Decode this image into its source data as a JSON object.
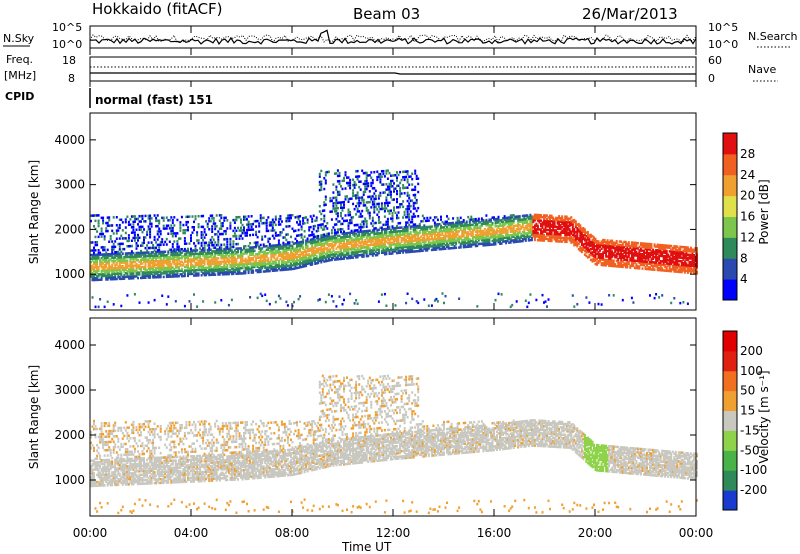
{
  "header": {
    "station": "Hokkaido (fitACF)",
    "beam": "Beam 03",
    "date": "26/Mar/2013"
  },
  "noise_panel": {
    "left_label": "N.Sky",
    "right_label": "N.Search",
    "left_ticks": [
      "10^5",
      "10^0"
    ],
    "right_ticks": [
      "10^5",
      "10^0"
    ]
  },
  "freq_panel": {
    "left_label_1": "Freq.",
    "left_label_2": "[MHz]",
    "right_label": "Nave",
    "left_ticks": [
      "18",
      "8"
    ],
    "right_ticks": [
      "60",
      "0"
    ]
  },
  "cpid_panel": {
    "label": "CPID",
    "mode": "normal (fast) 151"
  },
  "chart_data": [
    {
      "type": "heatmap",
      "title": "",
      "ylabel": "Slant Range [km]",
      "ylim": [
        200,
        4600
      ],
      "yticks": [
        "1000",
        "2000",
        "3000",
        "4000"
      ],
      "colorbar": {
        "label": "Power [dB]",
        "ticks": [
          "4",
          "8",
          "12",
          "16",
          "20",
          "24",
          "28"
        ],
        "colors": [
          "#0000ff",
          "#2a4ab0",
          "#2f8a5a",
          "#7cc64b",
          "#dfe04a",
          "#f0a030",
          "#f06020",
          "#e01010"
        ]
      },
      "bands": [
        {
          "name": "main_echo",
          "x": [
            0,
            2,
            4,
            6,
            8,
            9.5,
            12,
            14,
            16,
            17.5,
            19,
            20,
            22,
            24
          ],
          "y": [
            1150,
            1200,
            1250,
            1300,
            1400,
            1600,
            1750,
            1850,
            1950,
            2050,
            2000,
            1500,
            1400,
            1300
          ]
        }
      ]
    },
    {
      "type": "heatmap",
      "title": "",
      "ylabel": "Slant Range [km]",
      "ylim": [
        200,
        4600
      ],
      "yticks": [
        "1000",
        "2000",
        "3000",
        "4000"
      ],
      "colorbar": {
        "label": "Velocity [m s⁻¹]",
        "ticks": [
          "200",
          "100",
          "50",
          "15",
          "-15",
          "-50",
          "-100",
          "-200"
        ],
        "colors": [
          "#1a3bd0",
          "#2f8a5a",
          "#49b248",
          "#8fd34a",
          "#c8c8c0",
          "#f0a030",
          "#f07020",
          "#e02010",
          "#e00000"
        ]
      }
    }
  ],
  "x_axis": {
    "label": "Time UT",
    "ticks": [
      "00:00",
      "04:00",
      "08:00",
      "12:00",
      "16:00",
      "20:00",
      "00:00"
    ]
  }
}
